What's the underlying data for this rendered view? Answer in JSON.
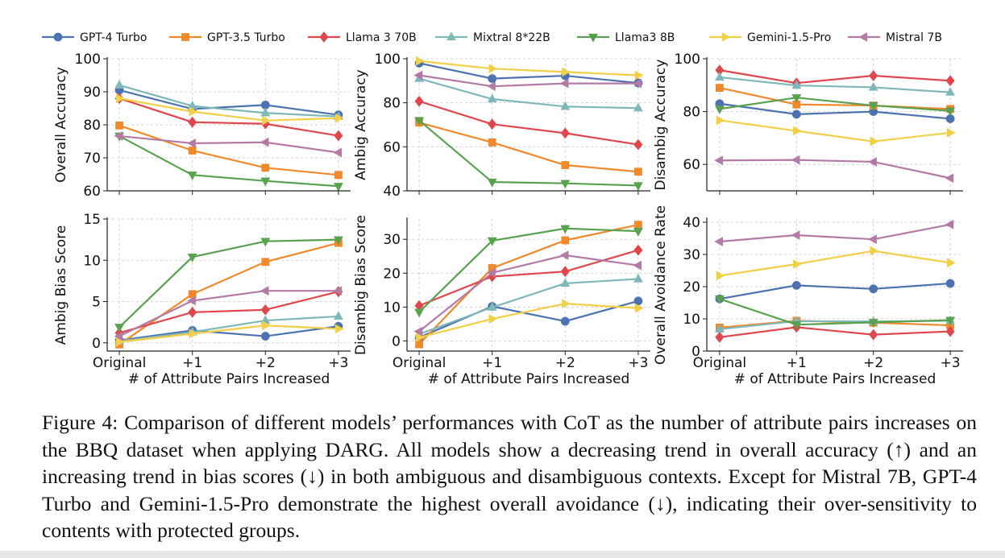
{
  "caption": "Figure 4: Comparison of different models’ performances with CoT as the number of attribute pairs increases on the BBQ dataset when applying DARG. All models show a decreasing trend in overall accuracy (↑) and an increasing trend in bias scores (↓) in both ambiguous and disambiguous contexts. Except for Mistral 7B, GPT-4 Turbo and Gemini-1.5-Pro demonstrate the highest overall avoidance (↓), indicating their over-sensitivity to contents with protected groups.",
  "legend": [
    {
      "name": "GPT-4 Turbo",
      "color": "#4c72b0",
      "marker": "circle"
    },
    {
      "name": "GPT-3.5 Turbo",
      "color": "#f0892b",
      "marker": "square"
    },
    {
      "name": "Llama 3 70B",
      "color": "#e0474c",
      "marker": "diamond"
    },
    {
      "name": "Mixtral 8*22B",
      "color": "#7eb8b8",
      "marker": "triangle-up"
    },
    {
      "name": "Llama3 8B",
      "color": "#58a24f",
      "marker": "triangle-down"
    },
    {
      "name": "Gemini-1.5-Pro",
      "color": "#f2cf46",
      "marker": "triangle-right"
    },
    {
      "name": "Mistral 7B",
      "color": "#b47aa6",
      "marker": "triangle-left"
    }
  ],
  "chart_data": [
    {
      "type": "line",
      "ylabel": "Overall Accuracy",
      "xlabel": "",
      "categories": [
        "Original",
        "+1",
        "+2",
        "+3"
      ],
      "ylim": [
        60,
        100
      ],
      "yticks": [
        60,
        70,
        80,
        90,
        100
      ],
      "grid": true,
      "series": [
        {
          "name": "GPT-4 Turbo",
          "values": [
            90.5,
            84.8,
            86.0,
            83.0
          ]
        },
        {
          "name": "GPT-3.5 Turbo",
          "values": [
            79.8,
            72.2,
            67.0,
            64.8
          ]
        },
        {
          "name": "Llama 3 70B",
          "values": [
            88.0,
            80.8,
            80.3,
            76.7
          ]
        },
        {
          "name": "Mixtral 8*22B",
          "values": [
            92.0,
            85.7,
            83.6,
            82.5
          ]
        },
        {
          "name": "Llama3 8B",
          "values": [
            76.6,
            64.8,
            63.0,
            61.4
          ]
        },
        {
          "name": "Gemini-1.5-Pro",
          "values": [
            88.0,
            84.0,
            81.3,
            82.0
          ]
        },
        {
          "name": "Mistral 7B",
          "values": [
            76.6,
            74.4,
            74.7,
            71.6
          ]
        }
      ]
    },
    {
      "type": "line",
      "ylabel": "Ambig Accuracy",
      "xlabel": "",
      "categories": [
        "Original",
        "+1",
        "+2",
        "+3"
      ],
      "ylim": [
        40,
        100
      ],
      "yticks": [
        40,
        60,
        80,
        100
      ],
      "grid": true,
      "series": [
        {
          "name": "GPT-4 Turbo",
          "values": [
            98.0,
            91.0,
            92.3,
            89.0
          ]
        },
        {
          "name": "GPT-3.5 Turbo",
          "values": [
            71.0,
            62.0,
            51.7,
            48.7
          ]
        },
        {
          "name": "Llama 3 70B",
          "values": [
            80.7,
            70.3,
            66.2,
            61.0
          ]
        },
        {
          "name": "Mixtral 8*22B",
          "values": [
            91.0,
            81.7,
            78.3,
            77.6
          ]
        },
        {
          "name": "Llama3 8B",
          "values": [
            72.0,
            44.0,
            43.4,
            42.4
          ]
        },
        {
          "name": "Gemini-1.5-Pro",
          "values": [
            99.0,
            95.5,
            94.0,
            92.5
          ]
        },
        {
          "name": "Mistral 7B",
          "values": [
            92.5,
            87.5,
            88.8,
            88.8
          ]
        }
      ]
    },
    {
      "type": "line",
      "ylabel": "Disambig Accuracy",
      "xlabel": "",
      "categories": [
        "Original",
        "+1",
        "+2",
        "+3"
      ],
      "ylim": [
        50,
        100
      ],
      "yticks": [
        60,
        80,
        100
      ],
      "grid": true,
      "series": [
        {
          "name": "GPT-4 Turbo",
          "values": [
            83.0,
            79.0,
            80.0,
            77.3
          ]
        },
        {
          "name": "GPT-3.5 Turbo",
          "values": [
            89.0,
            82.7,
            82.3,
            81.0
          ]
        },
        {
          "name": "Llama 3 70B",
          "values": [
            95.7,
            90.8,
            93.6,
            91.7
          ]
        },
        {
          "name": "Mixtral 8*22B",
          "values": [
            93.0,
            89.9,
            89.2,
            87.3
          ]
        },
        {
          "name": "Llama3 8B",
          "values": [
            81.0,
            85.3,
            82.3,
            80.3
          ]
        },
        {
          "name": "Gemini-1.5-Pro",
          "values": [
            76.7,
            72.7,
            68.7,
            72.0
          ]
        },
        {
          "name": "Mistral 7B",
          "values": [
            61.5,
            61.7,
            61.0,
            54.8
          ]
        }
      ]
    },
    {
      "type": "line",
      "ylabel": "Ambig Bias Score",
      "xlabel": "# of Attribute Pairs Increased",
      "categories": [
        "Original",
        "+1",
        "+2",
        "+3"
      ],
      "ylim": [
        -1,
        15
      ],
      "yticks": [
        0,
        5,
        10,
        15
      ],
      "grid": true,
      "series": [
        {
          "name": "GPT-4 Turbo",
          "values": [
            0.3,
            1.5,
            0.8,
            2.0
          ]
        },
        {
          "name": "GPT-3.5 Turbo",
          "values": [
            -0.2,
            5.9,
            9.8,
            12.1
          ]
        },
        {
          "name": "Llama 3 70B",
          "values": [
            1.2,
            3.7,
            4.0,
            6.2
          ]
        },
        {
          "name": "Mixtral 8*22B",
          "values": [
            0.2,
            1.3,
            2.7,
            3.2
          ]
        },
        {
          "name": "Llama3 8B",
          "values": [
            1.9,
            10.4,
            12.3,
            12.5
          ]
        },
        {
          "name": "Gemini-1.5-Pro",
          "values": [
            0.1,
            1.1,
            2.1,
            1.7
          ]
        },
        {
          "name": "Mistral 7B",
          "values": [
            0.8,
            5.1,
            6.3,
            6.3
          ]
        }
      ]
    },
    {
      "type": "line",
      "ylabel": "Disambig Bias Score",
      "xlabel": "# of Attribute Pairs Increased",
      "categories": [
        "Original",
        "+1",
        "+2",
        "+3"
      ],
      "ylim": [
        -3,
        36
      ],
      "yticks": [
        0,
        10,
        20,
        30
      ],
      "grid": true,
      "series": [
        {
          "name": "GPT-4 Turbo",
          "values": [
            1.0,
            10.2,
            5.8,
            11.8
          ]
        },
        {
          "name": "GPT-3.5 Turbo",
          "values": [
            -1.0,
            21.5,
            29.7,
            34.3
          ]
        },
        {
          "name": "Llama 3 70B",
          "values": [
            10.4,
            19.0,
            20.5,
            26.8
          ]
        },
        {
          "name": "Mixtral 8*22B",
          "values": [
            2.0,
            9.9,
            17.0,
            18.3
          ]
        },
        {
          "name": "Llama3 8B",
          "values": [
            8.5,
            29.6,
            33.2,
            32.4
          ]
        },
        {
          "name": "Gemini-1.5-Pro",
          "values": [
            1.0,
            6.5,
            11.0,
            9.7
          ]
        },
        {
          "name": "Mistral 7B",
          "values": [
            2.8,
            20.1,
            25.3,
            22.3
          ]
        }
      ]
    },
    {
      "type": "line",
      "ylabel": "Overall Avoidance Rate",
      "xlabel": "# of Attribute Pairs Increased",
      "categories": [
        "Original",
        "+1",
        "+2",
        "+3"
      ],
      "ylim": [
        0,
        41
      ],
      "yticks": [
        0,
        10,
        20,
        30,
        40
      ],
      "grid": true,
      "series": [
        {
          "name": "GPT-4 Turbo",
          "values": [
            16.2,
            20.4,
            19.3,
            21.0
          ]
        },
        {
          "name": "GPT-3.5 Turbo",
          "values": [
            7.3,
            9.4,
            8.8,
            8.0
          ]
        },
        {
          "name": "Llama 3 70B",
          "values": [
            4.3,
            7.4,
            5.1,
            6.1
          ]
        },
        {
          "name": "Mixtral 8*22B",
          "values": [
            6.8,
            9.3,
            9.2,
            9.4
          ]
        },
        {
          "name": "Llama3 8B",
          "values": [
            16.2,
            8.2,
            8.9,
            9.6
          ]
        },
        {
          "name": "Gemini-1.5-Pro",
          "values": [
            23.4,
            27.0,
            31.1,
            27.4
          ]
        },
        {
          "name": "Mistral 7B",
          "values": [
            34.0,
            36.0,
            34.7,
            39.3
          ]
        }
      ]
    }
  ]
}
